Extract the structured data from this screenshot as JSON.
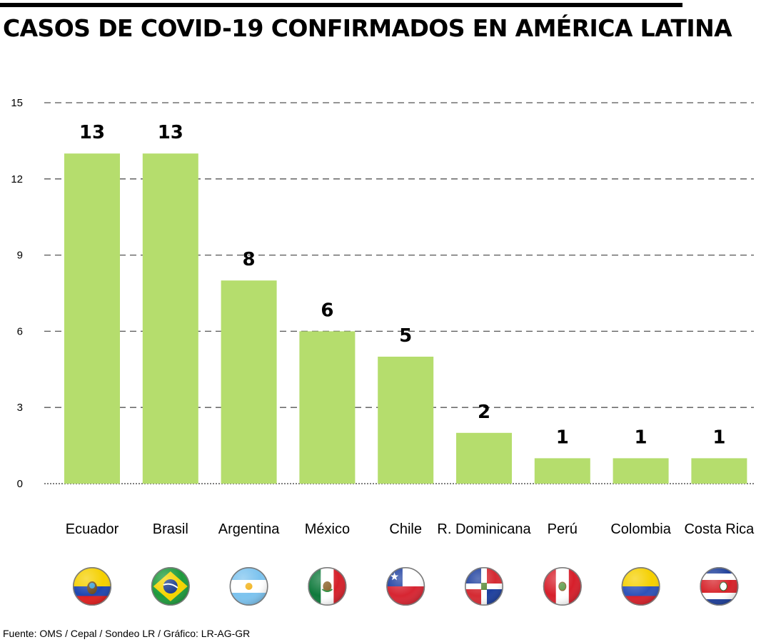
{
  "header": {
    "title": "CASOS DE COVID-19 CONFIRMADOS EN AMÉRICA LATINA"
  },
  "footer": {
    "source": "Fuente: OMS / Cepal / Sondeo LR / Gráfico: LR-AG-GR"
  },
  "colors": {
    "bar": "#b5dd6d",
    "grid": "#555555",
    "text": "#000000"
  },
  "chart_data": {
    "type": "bar",
    "title": "CASOS DE COVID-19 CONFIRMADOS EN AMÉRICA LATINA",
    "xlabel": "",
    "ylabel": "",
    "ylim": [
      0,
      15
    ],
    "yticks": [
      0,
      3,
      6,
      9,
      12,
      15
    ],
    "grid": true,
    "categories": [
      "Ecuador",
      "Brasil",
      "Argentina",
      "México",
      "Chile",
      "R. Dominicana",
      "Perú",
      "Colombia",
      "Costa Rica"
    ],
    "values": [
      13,
      13,
      8,
      6,
      5,
      2,
      1,
      1,
      1
    ],
    "flag_icons": [
      "flag-ecuador-icon",
      "flag-brazil-icon",
      "flag-argentina-icon",
      "flag-mexico-icon",
      "flag-chile-icon",
      "flag-dominican-republic-icon",
      "flag-peru-icon",
      "flag-colombia-icon",
      "flag-costa-rica-icon"
    ]
  }
}
